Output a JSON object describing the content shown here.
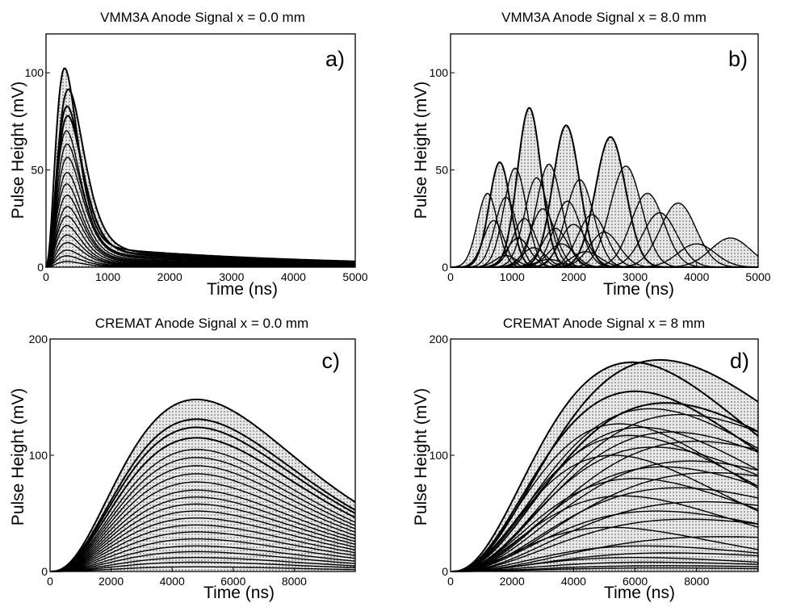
{
  "chart_data": [
    {
      "id": "a",
      "type": "line",
      "title": "VMM3A Anode Signal x = 0.0 mm",
      "panel_label": "a)",
      "xlabel": "Time (ns)",
      "ylabel": "Pulse Height (mV)",
      "xlim": [
        0,
        5000
      ],
      "ylim": [
        0,
        120
      ],
      "xticks": [
        0,
        1000,
        2000,
        3000,
        4000,
        5000
      ],
      "yticks": [
        0,
        50,
        100
      ],
      "xtick_labels": [
        "0",
        "1000",
        "2000",
        "3000",
        "4000",
        "5000"
      ],
      "ytick_labels": [
        "0",
        "50",
        "100"
      ],
      "description": "Many overlaid pulses peaking near 300-400 ns with long tails",
      "series": [
        {
          "peak_time": 300,
          "amplitude": 105
        },
        {
          "peak_time": 360,
          "amplitude": 94
        },
        {
          "peak_time": 340,
          "amplitude": 85
        },
        {
          "peak_time": 350,
          "amplitude": 80
        },
        {
          "peak_time": 330,
          "amplitude": 72
        },
        {
          "peak_time": 340,
          "amplitude": 65
        },
        {
          "peak_time": 345,
          "amplitude": 58
        },
        {
          "peak_time": 340,
          "amplitude": 50
        },
        {
          "peak_time": 335,
          "amplitude": 44
        },
        {
          "peak_time": 340,
          "amplitude": 38
        },
        {
          "peak_time": 345,
          "amplitude": 32
        },
        {
          "peak_time": 340,
          "amplitude": 27
        },
        {
          "peak_time": 335,
          "amplitude": 22
        },
        {
          "peak_time": 340,
          "amplitude": 17
        },
        {
          "peak_time": 345,
          "amplitude": 13
        },
        {
          "peak_time": 340,
          "amplitude": 9
        },
        {
          "peak_time": 335,
          "amplitude": 6
        },
        {
          "peak_time": 340,
          "amplitude": 3
        }
      ]
    },
    {
      "id": "b",
      "type": "line",
      "title": "VMM3A Anode Signal x = 8.0 mm",
      "panel_label": "b)",
      "xlabel": "Time (ns)",
      "ylabel": "Pulse Height (mV)",
      "xlim": [
        0,
        5000
      ],
      "ylim": [
        0,
        120
      ],
      "xticks": [
        0,
        1000,
        2000,
        3000,
        4000,
        5000
      ],
      "yticks": [
        0,
        50,
        100
      ],
      "xtick_labels": [
        "0",
        "1000",
        "2000",
        "3000",
        "4000",
        "5000"
      ],
      "ytick_labels": [
        "0",
        "50",
        "100"
      ],
      "description": "Overlaid pulses with multiple peaks spread across 500-4700 ns",
      "series": [
        {
          "peak_time": 1280,
          "amplitude": 82
        },
        {
          "peak_time": 1880,
          "amplitude": 73
        },
        {
          "peak_time": 2600,
          "amplitude": 67
        },
        {
          "peak_time": 800,
          "amplitude": 54
        },
        {
          "peak_time": 1600,
          "amplitude": 53
        },
        {
          "peak_time": 2850,
          "amplitude": 52
        },
        {
          "peak_time": 1050,
          "amplitude": 51
        },
        {
          "peak_time": 2100,
          "amplitude": 45
        },
        {
          "peak_time": 1400,
          "amplitude": 46
        },
        {
          "peak_time": 600,
          "amplitude": 38
        },
        {
          "peak_time": 3200,
          "amplitude": 38
        },
        {
          "peak_time": 900,
          "amplitude": 36
        },
        {
          "peak_time": 3700,
          "amplitude": 33
        },
        {
          "peak_time": 1900,
          "amplitude": 34
        },
        {
          "peak_time": 1500,
          "amplitude": 30
        },
        {
          "peak_time": 3400,
          "amplitude": 28
        },
        {
          "peak_time": 2300,
          "amplitude": 27
        },
        {
          "peak_time": 1200,
          "amplitude": 25
        },
        {
          "peak_time": 700,
          "amplitude": 24
        },
        {
          "peak_time": 2000,
          "amplitude": 22
        },
        {
          "peak_time": 1700,
          "amplitude": 20
        },
        {
          "peak_time": 2500,
          "amplitude": 18
        },
        {
          "peak_time": 1100,
          "amplitude": 15
        },
        {
          "peak_time": 1800,
          "amplitude": 12
        },
        {
          "peak_time": 4550,
          "amplitude": 15
        },
        {
          "peak_time": 4000,
          "amplitude": 12
        },
        {
          "peak_time": 1350,
          "amplitude": 10
        },
        {
          "peak_time": 2200,
          "amplitude": 8
        },
        {
          "peak_time": 900,
          "amplitude": 6
        },
        {
          "peak_time": 1600,
          "amplitude": 4
        }
      ]
    },
    {
      "id": "c",
      "type": "line",
      "title": "CREMAT Anode Signal x = 0.0 mm",
      "panel_label": "c)",
      "xlabel": "Time (ns)",
      "ylabel": "Pulse Height (mV)",
      "xlim": [
        0,
        10000
      ],
      "ylim": [
        0,
        200
      ],
      "xticks": [
        0,
        2000,
        4000,
        6000,
        8000
      ],
      "yticks": [
        0,
        100,
        200
      ],
      "xtick_labels": [
        "0",
        "2000",
        "4000",
        "6000",
        "8000"
      ],
      "ytick_labels": [
        "0",
        "100",
        "200"
      ],
      "description": "Many slow pulses peaking near 4800 ns with amplitudes up to ~148 mV",
      "series": [
        {
          "peak_time": 4800,
          "amplitude": 148
        },
        {
          "peak_time": 4800,
          "amplitude": 131
        },
        {
          "peak_time": 4800,
          "amplitude": 124
        },
        {
          "peak_time": 4800,
          "amplitude": 115
        },
        {
          "peak_time": 4800,
          "amplitude": 105
        },
        {
          "peak_time": 4800,
          "amplitude": 98
        },
        {
          "peak_time": 4800,
          "amplitude": 91
        },
        {
          "peak_time": 4800,
          "amplitude": 84
        },
        {
          "peak_time": 4800,
          "amplitude": 77
        },
        {
          "peak_time": 4800,
          "amplitude": 70
        },
        {
          "peak_time": 4800,
          "amplitude": 64
        },
        {
          "peak_time": 4800,
          "amplitude": 58
        },
        {
          "peak_time": 4800,
          "amplitude": 52
        },
        {
          "peak_time": 4800,
          "amplitude": 46
        },
        {
          "peak_time": 4800,
          "amplitude": 40
        },
        {
          "peak_time": 4800,
          "amplitude": 34
        },
        {
          "peak_time": 4800,
          "amplitude": 28
        },
        {
          "peak_time": 4800,
          "amplitude": 22
        },
        {
          "peak_time": 4800,
          "amplitude": 17
        },
        {
          "peak_time": 4800,
          "amplitude": 12
        },
        {
          "peak_time": 4800,
          "amplitude": 8
        },
        {
          "peak_time": 4800,
          "amplitude": 4
        }
      ]
    },
    {
      "id": "d",
      "type": "line",
      "title": "CREMAT Anode Signal x = 8 mm",
      "panel_label": "d)",
      "xlabel": "Time (ns)",
      "ylabel": "Pulse Height (mV)",
      "xlim": [
        0,
        10000
      ],
      "ylim": [
        0,
        200
      ],
      "xticks": [
        0,
        2000,
        4000,
        6000,
        8000
      ],
      "yticks": [
        0,
        100,
        200
      ],
      "xtick_labels": [
        "0",
        "2000",
        "4000",
        "6000",
        "8000"
      ],
      "ytick_labels": [
        "0",
        "100",
        "200"
      ],
      "description": "Slow pulses with varied peak times from 5000 to 9000 ns, max ~182 mV",
      "series": [
        {
          "peak_time": 6800,
          "amplitude": 182
        },
        {
          "peak_time": 5900,
          "amplitude": 180
        },
        {
          "peak_time": 6000,
          "amplitude": 155
        },
        {
          "peak_time": 7000,
          "amplitude": 145
        },
        {
          "peak_time": 6500,
          "amplitude": 140
        },
        {
          "peak_time": 7500,
          "amplitude": 135
        },
        {
          "peak_time": 5500,
          "amplitude": 127
        },
        {
          "peak_time": 6200,
          "amplitude": 124
        },
        {
          "peak_time": 7200,
          "amplitude": 120
        },
        {
          "peak_time": 5800,
          "amplitude": 117
        },
        {
          "peak_time": 8000,
          "amplitude": 112
        },
        {
          "peak_time": 6600,
          "amplitude": 107
        },
        {
          "peak_time": 5300,
          "amplitude": 100
        },
        {
          "peak_time": 7800,
          "amplitude": 95
        },
        {
          "peak_time": 6900,
          "amplitude": 90
        },
        {
          "peak_time": 8500,
          "amplitude": 85
        },
        {
          "peak_time": 6000,
          "amplitude": 80
        },
        {
          "peak_time": 7400,
          "amplitude": 72
        },
        {
          "peak_time": 5600,
          "amplitude": 65
        },
        {
          "peak_time": 8200,
          "amplitude": 60
        },
        {
          "peak_time": 6700,
          "amplitude": 52
        },
        {
          "peak_time": 7700,
          "amplitude": 45
        },
        {
          "peak_time": 5200,
          "amplitude": 38
        },
        {
          "peak_time": 8800,
          "amplitude": 30
        },
        {
          "peak_time": 6300,
          "amplitude": 22
        },
        {
          "peak_time": 7100,
          "amplitude": 16
        },
        {
          "peak_time": 6000,
          "amplitude": 12
        },
        {
          "peak_time": 6500,
          "amplitude": 8
        },
        {
          "peak_time": 7000,
          "amplitude": 5
        },
        {
          "peak_time": 6800,
          "amplitude": 3
        }
      ]
    }
  ]
}
